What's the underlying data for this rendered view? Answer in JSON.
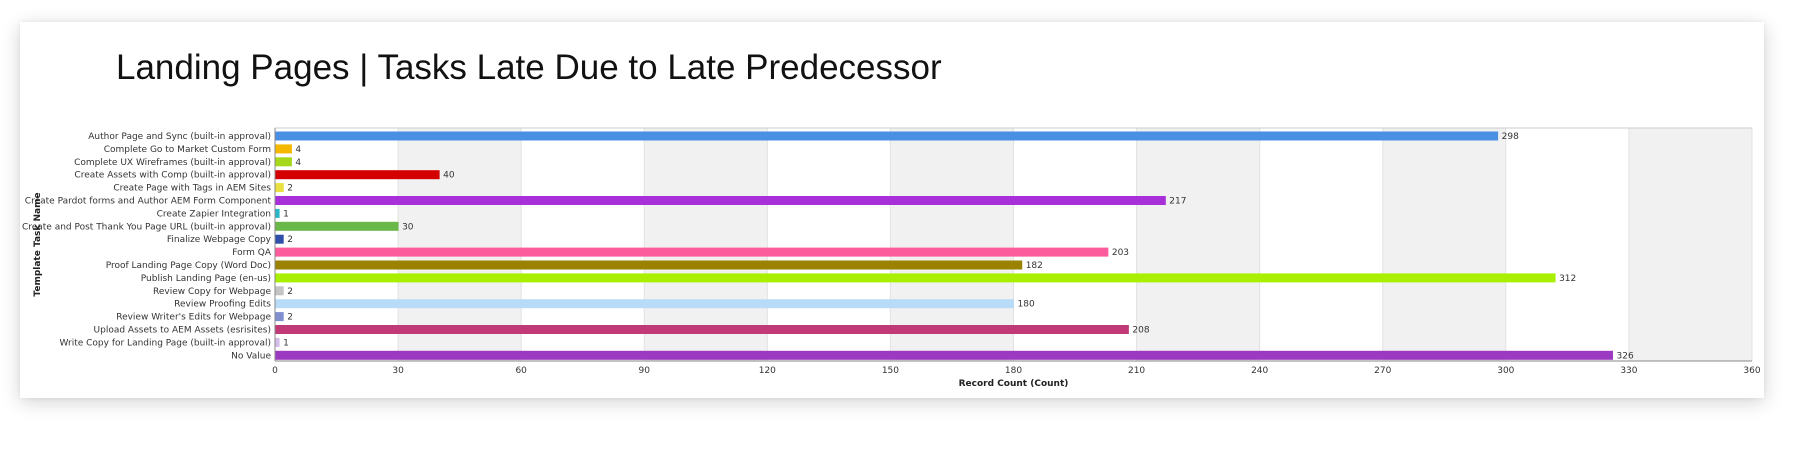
{
  "title": "Landing Pages | Tasks Late Due to Late Predecessor",
  "chart_data": {
    "type": "bar",
    "orientation": "horizontal",
    "xlabel": "Record Count (Count)",
    "ylabel": "Template Task Name",
    "xlim": [
      0,
      360
    ],
    "xticks": [
      0,
      30,
      60,
      90,
      120,
      150,
      180,
      210,
      240,
      270,
      300,
      330,
      360
    ],
    "grid": "alternating vertical bands",
    "categories": [
      "Author Page and Sync (built-in approval)",
      "Complete Go to Market Custom Form",
      "Complete UX Wireframes (built-in approval)",
      "Create Assets with Comp (built-in approval)",
      "Create Page with Tags in AEM Sites",
      "Create Pardot forms and Author AEM Form Component",
      "Create Zapier Integration",
      "Create and Post Thank You Page URL (built-in approval)",
      "Finalize Webpage Copy",
      "Form QA",
      "Proof Landing Page Copy (Word Doc)",
      "Publish Landing Page (en-us)",
      "Review Copy for Webpage",
      "Review Proofing Edits",
      "Review Writer's Edits for Webpage",
      "Upload Assets to AEM Assets (esrisites)",
      "Write Copy for Landing Page (built-in approval)",
      "No Value"
    ],
    "values": [
      298,
      4,
      4,
      40,
      2,
      217,
      1,
      30,
      2,
      203,
      182,
      312,
      2,
      180,
      2,
      208,
      1,
      326
    ],
    "value_labels": [
      "298",
      "4",
      "4",
      "40",
      "2",
      "217",
      "1",
      "30",
      "2",
      "203",
      "182",
      "312",
      "2",
      "180",
      "2",
      "208",
      "1",
      "326"
    ],
    "colors": [
      "#4a90e2",
      "#f5b800",
      "#a6d81a",
      "#d40000",
      "#e8e040",
      "#a830d8",
      "#2ab8c8",
      "#6ab84a",
      "#2f4fa8",
      "#fc5c9c",
      "#9a8200",
      "#a8f000",
      "#c4c4c4",
      "#b8dcf8",
      "#7f8fd0",
      "#c03a78",
      "#d4bce8",
      "#9b3ac0"
    ]
  }
}
